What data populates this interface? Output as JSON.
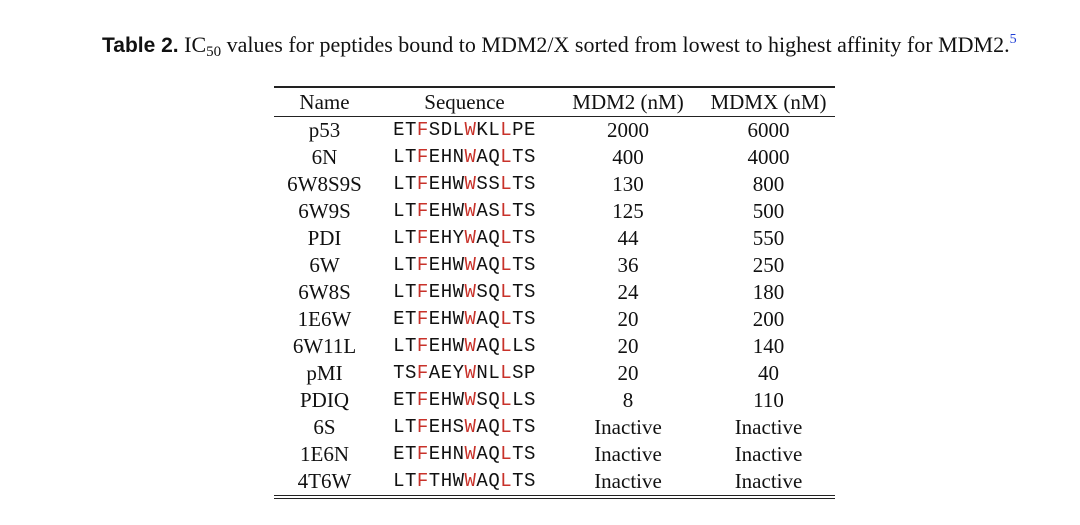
{
  "caption": {
    "label": "Table 2.",
    "ic_base": "IC",
    "ic_sub": "50",
    "text": " values for peptides bound to MDM2/X sorted from lowest to highest affinity for MDM2.",
    "reference": "5"
  },
  "table": {
    "columns": [
      "Name",
      "Sequence",
      "MDM2 (nM)",
      "MDMX (nM)"
    ],
    "highlight_positions": [
      2,
      6,
      9
    ],
    "highlight_color": "#c8322a",
    "rows": [
      {
        "name": "p53",
        "sequence": "ETFSDLWKLLPE",
        "mdm2": "2000",
        "mdmx": "6000"
      },
      {
        "name": "6N",
        "sequence": "LTFEHNWAQLTS",
        "mdm2": "400",
        "mdmx": "4000"
      },
      {
        "name": "6W8S9S",
        "sequence": "LTFEHWWSSLTS",
        "mdm2": "130",
        "mdmx": "800"
      },
      {
        "name": "6W9S",
        "sequence": "LTFEHWWASLTS",
        "mdm2": "125",
        "mdmx": "500"
      },
      {
        "name": "PDI",
        "sequence": "LTFEHYWAQLTS",
        "mdm2": "44",
        "mdmx": "550"
      },
      {
        "name": "6W",
        "sequence": "LTFEHWWAQLTS",
        "mdm2": "36",
        "mdmx": "250"
      },
      {
        "name": "6W8S",
        "sequence": "LTFEHWWSQLTS",
        "mdm2": "24",
        "mdmx": "180"
      },
      {
        "name": "1E6W",
        "sequence": "ETFEHWWAQLTS",
        "mdm2": "20",
        "mdmx": "200"
      },
      {
        "name": "6W11L",
        "sequence": "LTFEHWWAQLLS",
        "mdm2": "20",
        "mdmx": "140"
      },
      {
        "name": "pMI",
        "sequence": "TSFAEYWNLLSP",
        "mdm2": "20",
        "mdmx": "40"
      },
      {
        "name": "PDIQ",
        "sequence": "ETFEHWWSQLLS",
        "mdm2": "8",
        "mdmx": "110"
      },
      {
        "name": "6S",
        "sequence": "LTFEHSWAQLTS",
        "mdm2": "Inactive",
        "mdmx": "Inactive"
      },
      {
        "name": "1E6N",
        "sequence": "ETFEHNWAQLTS",
        "mdm2": "Inactive",
        "mdmx": "Inactive"
      },
      {
        "name": "4T6W",
        "sequence": "LTFTHWWAQLTS",
        "mdm2": "Inactive",
        "mdmx": "Inactive"
      }
    ]
  }
}
